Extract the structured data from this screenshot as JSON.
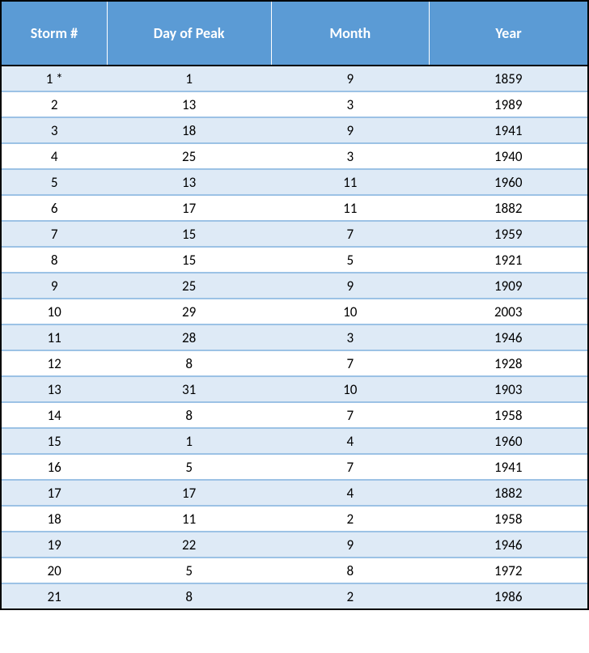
{
  "table": {
    "type": "table",
    "header_bg_color": "#5b9bd5",
    "header_text_color": "#ffffff",
    "row_even_bg_color": "#deeaf6",
    "row_odd_bg_color": "#ffffff",
    "row_border_color": "#9cc2e5",
    "outer_border_color": "#000000",
    "header_fontsize": 18,
    "cell_fontsize": 17,
    "columns": [
      {
        "label": "Storm #",
        "key": "storm"
      },
      {
        "label": "Day of Peak",
        "key": "day"
      },
      {
        "label": "Month",
        "key": "month"
      },
      {
        "label": "Year",
        "key": "year"
      }
    ],
    "rows": [
      {
        "storm": "1 *",
        "day": "1",
        "month": "9",
        "year": "1859"
      },
      {
        "storm": "2",
        "day": "13",
        "month": "3",
        "year": "1989"
      },
      {
        "storm": "3",
        "day": "18",
        "month": "9",
        "year": "1941"
      },
      {
        "storm": "4",
        "day": "25",
        "month": "3",
        "year": "1940"
      },
      {
        "storm": "5",
        "day": "13",
        "month": "11",
        "year": "1960"
      },
      {
        "storm": "6",
        "day": "17",
        "month": "11",
        "year": "1882"
      },
      {
        "storm": "7",
        "day": "15",
        "month": "7",
        "year": "1959"
      },
      {
        "storm": "8",
        "day": "15",
        "month": "5",
        "year": "1921"
      },
      {
        "storm": "9",
        "day": "25",
        "month": "9",
        "year": "1909"
      },
      {
        "storm": "10",
        "day": "29",
        "month": "10",
        "year": "2003"
      },
      {
        "storm": "11",
        "day": "28",
        "month": "3",
        "year": "1946"
      },
      {
        "storm": "12",
        "day": "8",
        "month": "7",
        "year": "1928"
      },
      {
        "storm": "13",
        "day": "31",
        "month": "10",
        "year": "1903"
      },
      {
        "storm": "14",
        "day": "8",
        "month": "7",
        "year": "1958"
      },
      {
        "storm": "15",
        "day": "1",
        "month": "4",
        "year": "1960"
      },
      {
        "storm": "16",
        "day": "5",
        "month": "7",
        "year": "1941"
      },
      {
        "storm": "17",
        "day": "17",
        "month": "4",
        "year": "1882"
      },
      {
        "storm": "18",
        "day": "11",
        "month": "2",
        "year": "1958"
      },
      {
        "storm": "19",
        "day": "22",
        "month": "9",
        "year": "1946"
      },
      {
        "storm": "20",
        "day": "5",
        "month": "8",
        "year": "1972"
      },
      {
        "storm": "21",
        "day": "8",
        "month": "2",
        "year": "1986"
      }
    ]
  }
}
